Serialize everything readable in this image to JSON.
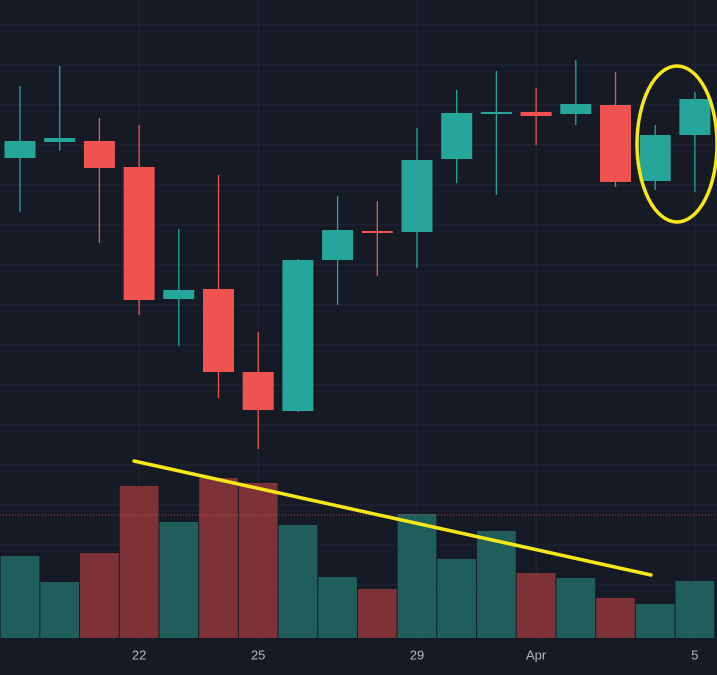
{
  "chart_data": {
    "type": "candlestick",
    "categories": [
      null,
      null,
      null,
      "22",
      null,
      null,
      "25",
      null,
      null,
      null,
      "29",
      null,
      null,
      "Apr",
      null,
      null,
      null,
      "5"
    ],
    "open": [
      517,
      533,
      534,
      508,
      376,
      386,
      303,
      264,
      415,
      444,
      443,
      516,
      561,
      563,
      561,
      570,
      494,
      540
    ],
    "high": [
      589,
      609,
      557,
      550,
      446,
      500,
      343,
      416,
      479,
      474,
      547,
      585,
      604,
      587,
      615,
      603,
      550,
      583
    ],
    "low": [
      463,
      524,
      432,
      360,
      329,
      277,
      226,
      263,
      370,
      399,
      407,
      492,
      480,
      530,
      550,
      488,
      485,
      483
    ],
    "close": [
      534,
      537,
      507,
      375,
      385,
      303,
      265,
      415,
      445,
      442,
      515,
      562,
      563,
      559,
      571,
      493,
      540,
      576
    ],
    "ylim": [
      0,
      675
    ],
    "volume": [
      82,
      56,
      85,
      152,
      116,
      160,
      155,
      113,
      61,
      49,
      124,
      79,
      107,
      65,
      60,
      40,
      34,
      57
    ],
    "volume_ylim": [
      0,
      638
    ],
    "up_color": "#26a69a",
    "down_color": "#ef5350",
    "volume_up_color": "#1f5e5b",
    "volume_down_color": "#7c3236"
  }
}
